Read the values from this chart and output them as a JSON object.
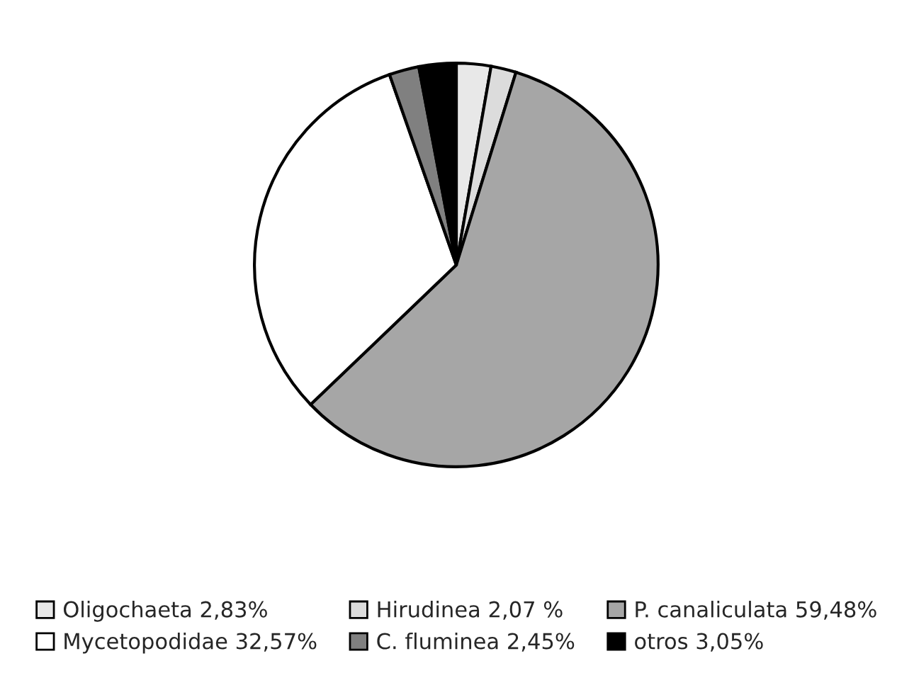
{
  "chart_data": {
    "type": "pie",
    "categories": [
      "Oligochaeta 2,83%",
      "Hirudinea 2,07 %",
      "P. canaliculata 59,48%",
      "Mycetopodidae 32,57%",
      "C. fluminea 2,45%",
      "otros 3,05%"
    ],
    "values": [
      2.83,
      2.07,
      59.48,
      32.57,
      2.45,
      3.05
    ],
    "colors": [
      "#e8e8e8",
      "#dcdcdc",
      "#a6a6a6",
      "#ffffff",
      "#808080",
      "#000000"
    ],
    "legend": "bottom"
  }
}
